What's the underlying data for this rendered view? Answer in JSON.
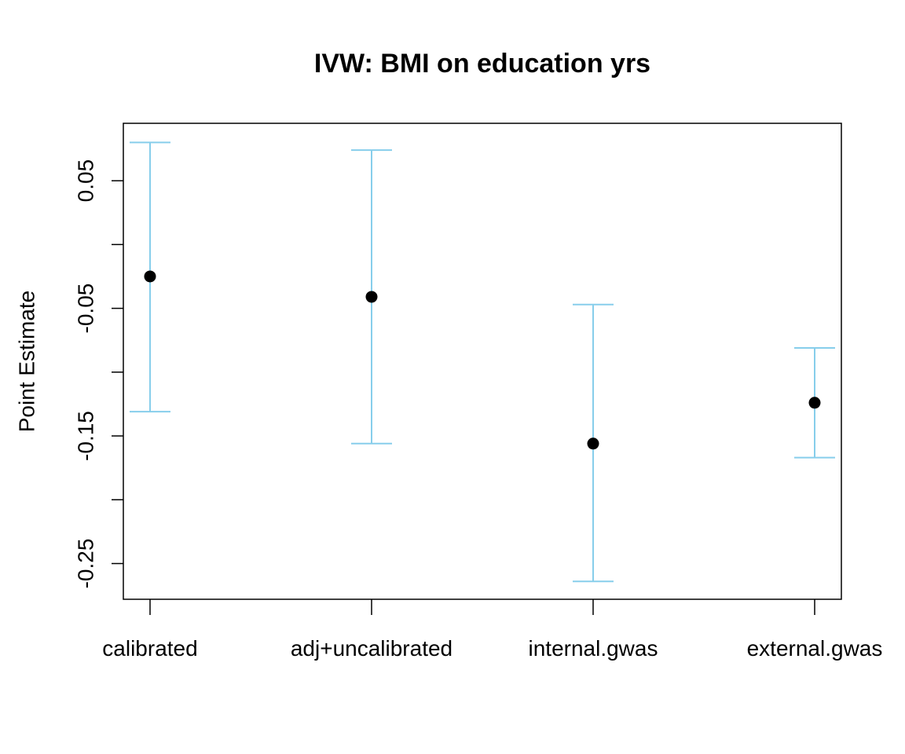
{
  "chart_data": {
    "type": "scatter",
    "title": "IVW: BMI on education yrs",
    "xlabel": "",
    "ylabel": "Point Estimate",
    "categories": [
      "calibrated",
      "adj+uncalibrated",
      "internal.gwas",
      "external.gwas"
    ],
    "estimates": [
      -0.025,
      -0.041,
      -0.156,
      -0.124
    ],
    "lower": [
      -0.131,
      -0.156,
      -0.264,
      -0.167
    ],
    "upper": [
      0.08,
      0.074,
      -0.047,
      -0.081
    ],
    "ylim": [
      -0.278,
      0.095
    ],
    "yticks": [
      0.05,
      0.0,
      -0.05,
      -0.1,
      -0.15,
      -0.2,
      -0.25
    ],
    "ytick_labels": [
      "0.05",
      "",
      "-0.05",
      "",
      "-0.15",
      "",
      "-0.25"
    ],
    "grid": false,
    "errorbar_color": "#87CEEB",
    "point_color": "#000000"
  }
}
